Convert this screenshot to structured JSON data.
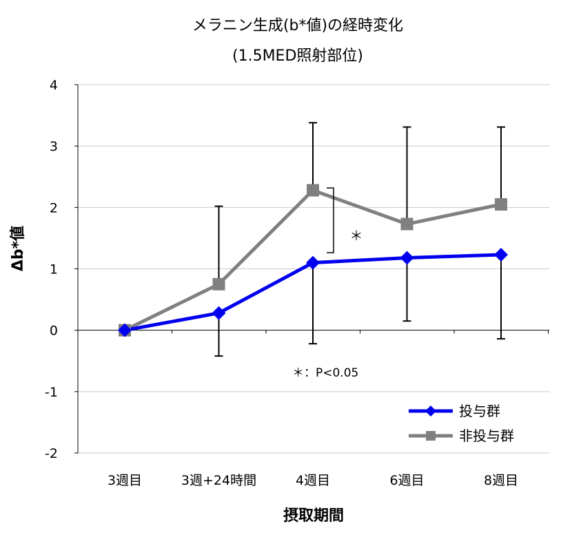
{
  "chart_data": {
    "type": "line",
    "title": "メラニン生成(b*値)の経時変化",
    "subtitle": "(1.5MED照射部位)",
    "xlabel": "摂取期間",
    "ylabel": "Δb*値",
    "categories": [
      "3週目",
      "3週+24時間",
      "4週目",
      "6週目",
      "8週目"
    ],
    "ylim": [
      -2,
      4
    ],
    "yticks": [
      4,
      3,
      2,
      1,
      0,
      -1,
      -2
    ],
    "ytick_labels": [
      "4",
      "3",
      "2",
      "1",
      "0",
      "-1",
      "-2"
    ],
    "grid": true,
    "legend_position": "bottom-right",
    "series": [
      {
        "name": "投与群",
        "color": "#0000ee",
        "marker": "diamond",
        "values": [
          0.0,
          0.28,
          1.1,
          1.18,
          1.23
        ],
        "error_low": [
          0.0,
          -0.42,
          -0.22,
          0.15,
          -0.14
        ],
        "error_high": [
          0.0,
          0.28,
          1.1,
          1.18,
          1.23
        ]
      },
      {
        "name": "非投与群",
        "color": "#808080",
        "marker": "square",
        "values": [
          0.0,
          0.75,
          2.28,
          1.73,
          2.05
        ],
        "error_low": [
          0.0,
          0.75,
          2.28,
          1.73,
          2.05
        ],
        "error_high": [
          0.0,
          2.02,
          3.38,
          3.31,
          3.31
        ]
      }
    ],
    "annotations": {
      "significance_mark": "＊",
      "significance_note": "＊：P<0.05"
    }
  }
}
